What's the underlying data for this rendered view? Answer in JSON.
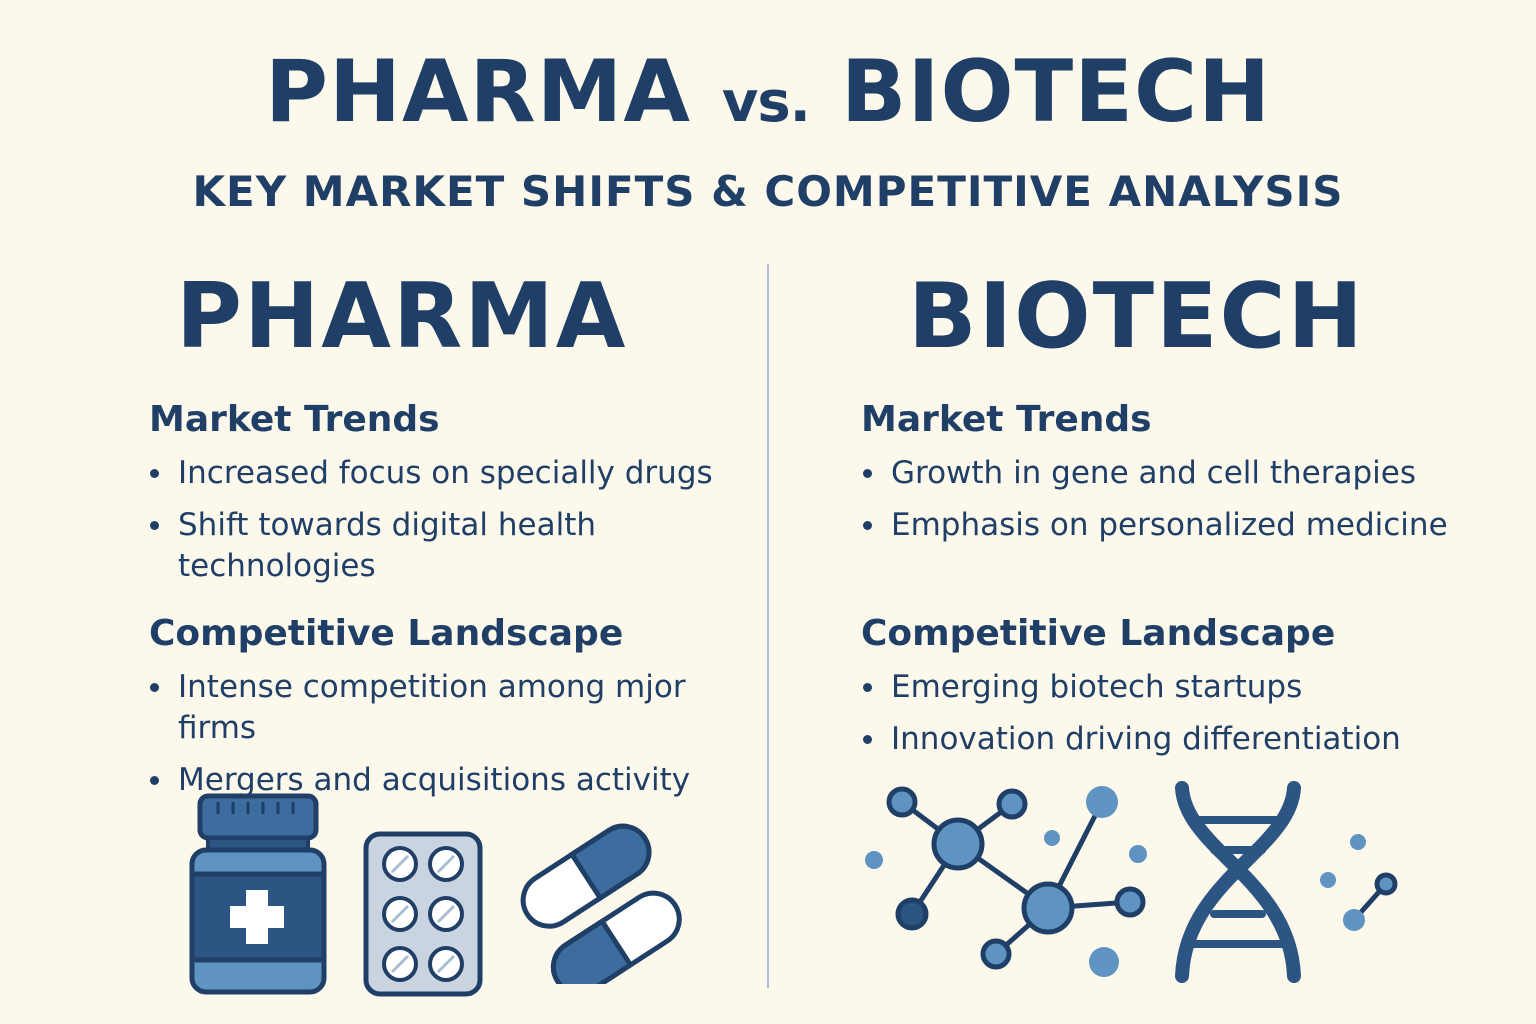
{
  "header": {
    "title_left": "PHARMA",
    "title_vs": "vs.",
    "title_right": "BIOTECH",
    "subtitle": "KEY MARKET SHIFTS & COMPETITIVE ANALYSIS"
  },
  "pharma": {
    "heading": "PHARMA",
    "market_trends_title": "Market Trends",
    "market_trends": [
      "Increased focus on specially drugs",
      "Shift towards digital health technologies"
    ],
    "competitive_title": "Competitive Landscape",
    "competitive": [
      "Intense competition among mjor firms",
      "Mergers and acquisitions activity"
    ],
    "icons": [
      "medicine-bottle-icon",
      "blister-pack-icon",
      "capsules-icon"
    ]
  },
  "biotech": {
    "heading": "BIOTECH",
    "market_trends_title": "Market Trends",
    "market_trends": [
      "Growth in gene and cell therapies",
      "Emphasis on personalized medicine"
    ],
    "competitive_title": "Competitive Landscape",
    "competitive": [
      "Emerging biotech startups",
      "Innovation driving differentiation"
    ],
    "icons": [
      "molecule-network-icon",
      "dna-helix-icon"
    ]
  },
  "colors": {
    "background": "#fcf8ec",
    "navy": "#1f3f66",
    "mid_blue": "#3d6d9e",
    "light_blue": "#5f93c2",
    "divider": "#a9bdd3"
  }
}
